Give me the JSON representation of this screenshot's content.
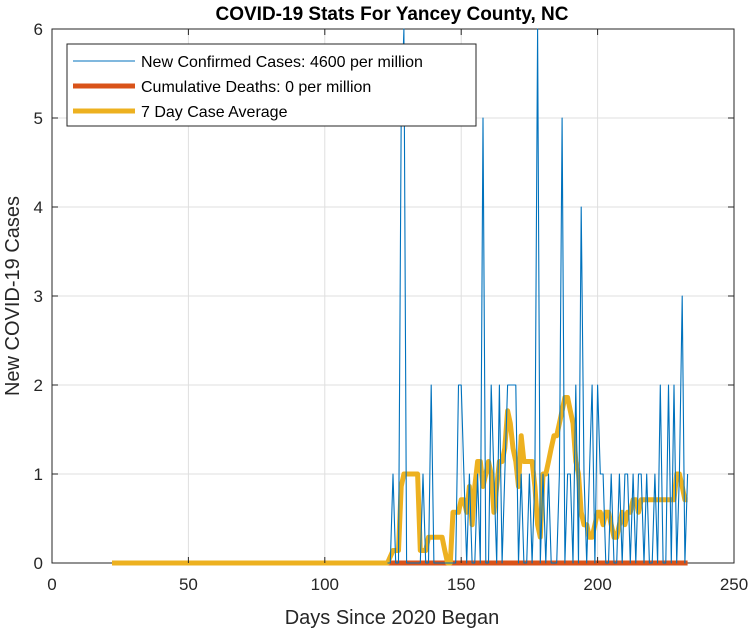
{
  "chart_data": {
    "type": "line",
    "title": "COVID-19 Stats For Yancey County, NC",
    "xlabel": "Days Since 2020 Began",
    "ylabel": "New COVID-19 Cases",
    "xlim": [
      0,
      250
    ],
    "ylim": [
      0,
      6
    ],
    "xticks": [
      0,
      50,
      100,
      150,
      200,
      250
    ],
    "yticks": [
      0,
      1,
      2,
      3,
      4,
      5,
      6
    ],
    "xtick_labels": [
      "0",
      "50",
      "100",
      "150",
      "200",
      "250"
    ],
    "ytick_labels": [
      "0",
      "1",
      "2",
      "3",
      "4",
      "5",
      "6"
    ],
    "grid": true,
    "legend_position": "top-left",
    "series": [
      {
        "name": "New Confirmed Cases: 4600 per million",
        "color": "#0072BD",
        "x": [
          123,
          124,
          125,
          126,
          127,
          128,
          129,
          130,
          131,
          132,
          133,
          134,
          135,
          136,
          137,
          138,
          139,
          140,
          141,
          142,
          143,
          144,
          145,
          146,
          147,
          148,
          149,
          150,
          151,
          152,
          153,
          154,
          155,
          156,
          157,
          158,
          159,
          160,
          161,
          162,
          163,
          164,
          165,
          166,
          167,
          168,
          169,
          170,
          171,
          172,
          173,
          174,
          175,
          176,
          177,
          178,
          179,
          180,
          181,
          182,
          183,
          184,
          185,
          186,
          187,
          188,
          189,
          190,
          191,
          192,
          193,
          194,
          195,
          196,
          197,
          198,
          199,
          200,
          201,
          202,
          203,
          204,
          205,
          206,
          207,
          208,
          209,
          210,
          211,
          212,
          213,
          214,
          215,
          216,
          217,
          218,
          219,
          220,
          221,
          222,
          223,
          224,
          225,
          226,
          227,
          228,
          229,
          230,
          231,
          232,
          233
        ],
        "y": [
          0,
          0,
          1,
          0,
          0,
          5,
          6,
          0,
          0,
          0,
          0,
          0,
          0,
          1,
          0,
          0,
          2,
          0,
          0,
          0,
          0,
          0,
          0,
          0,
          0,
          0,
          2,
          2,
          1,
          0,
          1,
          0,
          0,
          1,
          0,
          5,
          0,
          0,
          2,
          1,
          0,
          2,
          0,
          1,
          2,
          2,
          2,
          2,
          0,
          1,
          0,
          0,
          1,
          0,
          1,
          6,
          0,
          1,
          0,
          1,
          0,
          0,
          0,
          1,
          5,
          0,
          1,
          1,
          0,
          2,
          0,
          4,
          1,
          0,
          1,
          2,
          0,
          2,
          1,
          1,
          0,
          0,
          1,
          0,
          0,
          1,
          0,
          1,
          1,
          0,
          1,
          0,
          1,
          1,
          0,
          1,
          0,
          0,
          1,
          0,
          2,
          0,
          0,
          2,
          0,
          2,
          0,
          1,
          3,
          0,
          1
        ]
      },
      {
        "name": "Cumulative Deaths: 0 per million",
        "color": "#D95319",
        "x": [
          123,
          233
        ],
        "y": [
          0,
          0
        ]
      },
      {
        "name": "7 Day Case Average",
        "color": "#EDB120",
        "x": [
          22,
          60,
          100,
          123,
          125,
          126,
          127,
          128,
          129,
          130,
          131,
          132,
          133,
          134,
          135,
          136,
          137,
          138,
          139,
          140,
          141,
          142,
          143,
          144,
          145,
          146,
          147,
          148,
          149,
          150,
          151,
          152,
          153,
          154,
          155,
          156,
          157,
          158,
          159,
          160,
          161,
          162,
          163,
          164,
          165,
          166,
          167,
          168,
          169,
          170,
          171,
          172,
          173,
          174,
          175,
          176,
          177,
          178,
          179,
          180,
          181,
          182,
          183,
          184,
          185,
          186,
          187,
          188,
          189,
          190,
          191,
          192,
          193,
          194,
          195,
          196,
          197,
          198,
          199,
          200,
          201,
          202,
          203,
          204,
          205,
          206,
          207,
          208,
          209,
          210,
          211,
          212,
          213,
          214,
          215,
          216,
          217,
          218,
          219,
          220,
          221,
          222,
          223,
          224,
          225,
          226,
          227,
          228,
          229,
          230,
          231,
          232,
          233
        ],
        "y": [
          0,
          0,
          0,
          0,
          0.14,
          0.14,
          0.14,
          0.86,
          1,
          1,
          1,
          1,
          1,
          1,
          0.14,
          0.14,
          0.14,
          0.29,
          0.29,
          0.29,
          0.29,
          0.29,
          0.29,
          0.14,
          0,
          0,
          0.57,
          0.57,
          0.57,
          0.71,
          0.71,
          0.57,
          0.86,
          0.43,
          0.86,
          1.14,
          1.14,
          0.86,
          1,
          1.14,
          1,
          0.57,
          0.86,
          1.14,
          1.14,
          1.29,
          1.71,
          1.57,
          1.29,
          1.14,
          0.86,
          1.43,
          1.14,
          1.14,
          1.14,
          1.14,
          0.86,
          0.43,
          0.29,
          1,
          1,
          1.14,
          1.29,
          1.43,
          1.43,
          1.57,
          1.71,
          1.86,
          1.86,
          1.71,
          1.57,
          1.14,
          1,
          0.57,
          0.43,
          0.43,
          0.29,
          0.29,
          0.43,
          0.57,
          0.57,
          0.43,
          0.57,
          0.57,
          0.43,
          0.29,
          0.29,
          0.43,
          0.57,
          0.43,
          0.57,
          0.57,
          0.71,
          0.71,
          0.57,
          0.71,
          0.71,
          0.71,
          0.71,
          0.71,
          0.71,
          0.71,
          0.71,
          0.71,
          0.71,
          0.71,
          0.71,
          0.71,
          1,
          1,
          0.86,
          0.71,
          0.71
        ]
      }
    ]
  }
}
